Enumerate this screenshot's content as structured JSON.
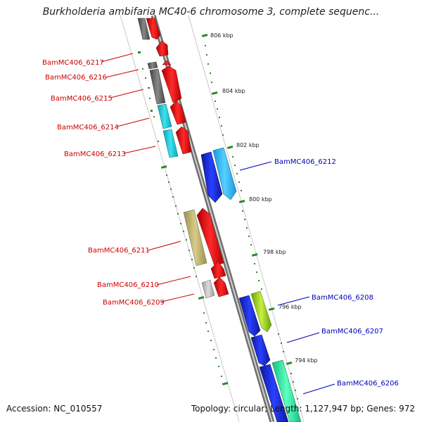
{
  "title": "Burkholderia ambifaria MC40-6 chromosome 3, complete sequenc...",
  "footer": {
    "accession": "Accession: NC_010557",
    "summary": "Topology: circular; Length: 1,127,947 bp; Genes: 972"
  },
  "colors": {
    "reverse_label": "#cc0000",
    "forward_label": "#0000bb",
    "tick": "#2a8a2a",
    "backbone": "#8a8a8a"
  },
  "scale_labels": [
    "806 kbp",
    "804 kbp",
    "802 kbp",
    "800 kbp",
    "798 kbp",
    "796 kbp",
    "794 kbp"
  ],
  "reverse_genes": [
    {
      "label": "BamMC406_6217",
      "color": "#ee1111"
    },
    {
      "label": "BamMC406_6216",
      "color": "#ee1111"
    },
    {
      "label": "BamMC406_6215",
      "color": "#ee1111"
    },
    {
      "label": "BamMC406_6214",
      "color": "#ee1111"
    },
    {
      "label": "BamMC406_6213",
      "color": "#ee1111"
    },
    {
      "label": "BamMC406_6211",
      "color": "#ee1111"
    },
    {
      "label": "BamMC406_6210",
      "color": "#ee1111"
    },
    {
      "label": "BamMC406_6209",
      "color": "#ee1111"
    }
  ],
  "forward_genes": [
    {
      "label": "BamMC406_6212",
      "color": "#1133dd"
    },
    {
      "label": "BamMC406_6208",
      "color": "#1133dd"
    },
    {
      "label": "BamMC406_6207",
      "color": "#1133dd"
    },
    {
      "label": "BamMC406_6206",
      "color": "#1133dd"
    }
  ]
}
